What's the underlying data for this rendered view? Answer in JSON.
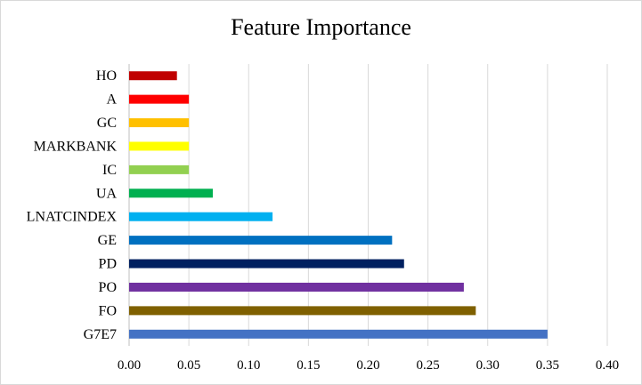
{
  "chart_data": {
    "type": "bar",
    "orientation": "horizontal",
    "title": "Feature Importance",
    "xlabel": "",
    "ylabel": "",
    "categories": [
      "HO",
      "A",
      "GC",
      "MARKBANK",
      "IC",
      "UA",
      "LNATCINDEX",
      "GE",
      "PD",
      "PO",
      "FO",
      "G7E7"
    ],
    "values": [
      0.04,
      0.05,
      0.05,
      0.05,
      0.05,
      0.07,
      0.12,
      0.22,
      0.23,
      0.28,
      0.29,
      0.35
    ],
    "colors": [
      "#c00000",
      "#ff0000",
      "#ffc000",
      "#ffff00",
      "#92d050",
      "#00b050",
      "#00b0f0",
      "#0070c0",
      "#002060",
      "#7030a0",
      "#7f6000",
      "#4472c4"
    ],
    "xlim": [
      0,
      0.4
    ],
    "xticks": [
      0.0,
      0.05,
      0.1,
      0.15,
      0.2,
      0.25,
      0.3,
      0.35,
      0.4
    ],
    "xtick_labels": [
      "0.00",
      "0.05",
      "0.10",
      "0.15",
      "0.20",
      "0.25",
      "0.30",
      "0.35",
      "0.40"
    ],
    "grid": "vertical",
    "legend": "none"
  }
}
